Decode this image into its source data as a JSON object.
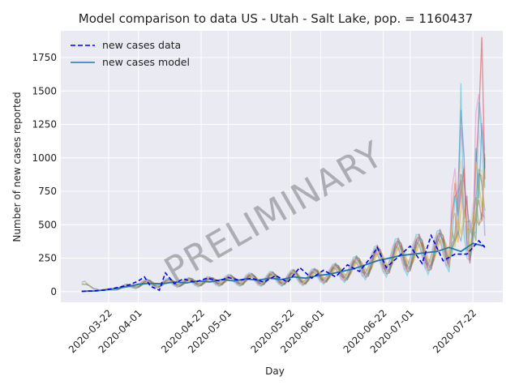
{
  "chart_data": {
    "type": "line",
    "title": "Model comparison to data US - Utah - Salt Lake, pop. = 1160437",
    "xlabel": "Day",
    "ylabel": "Number of new cases reported",
    "x_range": [
      "2020-03-06",
      "2020-08-01"
    ],
    "ylim": [
      -80,
      1950
    ],
    "y_ticks": [
      0,
      250,
      500,
      750,
      1000,
      1250,
      1500,
      1750
    ],
    "x_ticks": [
      "2020-03-22",
      "2020-04-01",
      "2020-04-22",
      "2020-05-01",
      "2020-05-22",
      "2020-06-01",
      "2020-06-22",
      "2020-07-01",
      "2020-07-22"
    ],
    "grid": true,
    "background": "#eaeaf2",
    "legend_position": "top-left",
    "watermark": "PRELIMINARY",
    "series": [
      {
        "name": "new cases data",
        "style": "dashed",
        "color": "#0000ff",
        "x": [
          "2020-03-13",
          "2020-03-17",
          "2020-03-21",
          "2020-03-25",
          "2020-03-29",
          "2020-04-01",
          "2020-04-03",
          "2020-04-05",
          "2020-04-08",
          "2020-04-10",
          "2020-04-13",
          "2020-04-16",
          "2020-04-20",
          "2020-04-24",
          "2020-04-28",
          "2020-05-01",
          "2020-05-05",
          "2020-05-09",
          "2020-05-13",
          "2020-05-17",
          "2020-05-21",
          "2020-05-25",
          "2020-05-29",
          "2020-06-02",
          "2020-06-06",
          "2020-06-10",
          "2020-06-14",
          "2020-06-18",
          "2020-06-20",
          "2020-06-23",
          "2020-06-27",
          "2020-07-01",
          "2020-07-05",
          "2020-07-08",
          "2020-07-12",
          "2020-07-16",
          "2020-07-20",
          "2020-07-24",
          "2020-07-26"
        ],
        "values": [
          2,
          5,
          12,
          30,
          50,
          80,
          110,
          40,
          10,
          140,
          60,
          95,
          70,
          100,
          80,
          105,
          85,
          100,
          70,
          120,
          70,
          180,
          100,
          160,
          110,
          200,
          150,
          260,
          330,
          180,
          260,
          340,
          210,
          420,
          230,
          280,
          280,
          380,
          330
        ]
      },
      {
        "name": "new cases model",
        "style": "solid",
        "color": "#1f77b4",
        "x": [
          "2020-03-13",
          "2020-03-17",
          "2020-03-21",
          "2020-03-25",
          "2020-03-29",
          "2020-04-01",
          "2020-04-05",
          "2020-04-09",
          "2020-04-13",
          "2020-04-17",
          "2020-04-21",
          "2020-04-25",
          "2020-04-29",
          "2020-05-03",
          "2020-05-07",
          "2020-05-11",
          "2020-05-15",
          "2020-05-19",
          "2020-05-23",
          "2020-05-27",
          "2020-05-31",
          "2020-06-04",
          "2020-06-08",
          "2020-06-12",
          "2020-06-16",
          "2020-06-20",
          "2020-06-24",
          "2020-06-28",
          "2020-07-02",
          "2020-07-06",
          "2020-07-10",
          "2020-07-14",
          "2020-07-18",
          "2020-07-22",
          "2020-07-26"
        ],
        "values": [
          2,
          5,
          12,
          25,
          40,
          55,
          62,
          58,
          72,
          65,
          80,
          72,
          90,
          80,
          95,
          85,
          100,
          90,
          110,
          100,
          120,
          130,
          150,
          170,
          200,
          230,
          250,
          270,
          280,
          290,
          300,
          330,
          300,
          360,
          340
        ]
      }
    ]
  }
}
